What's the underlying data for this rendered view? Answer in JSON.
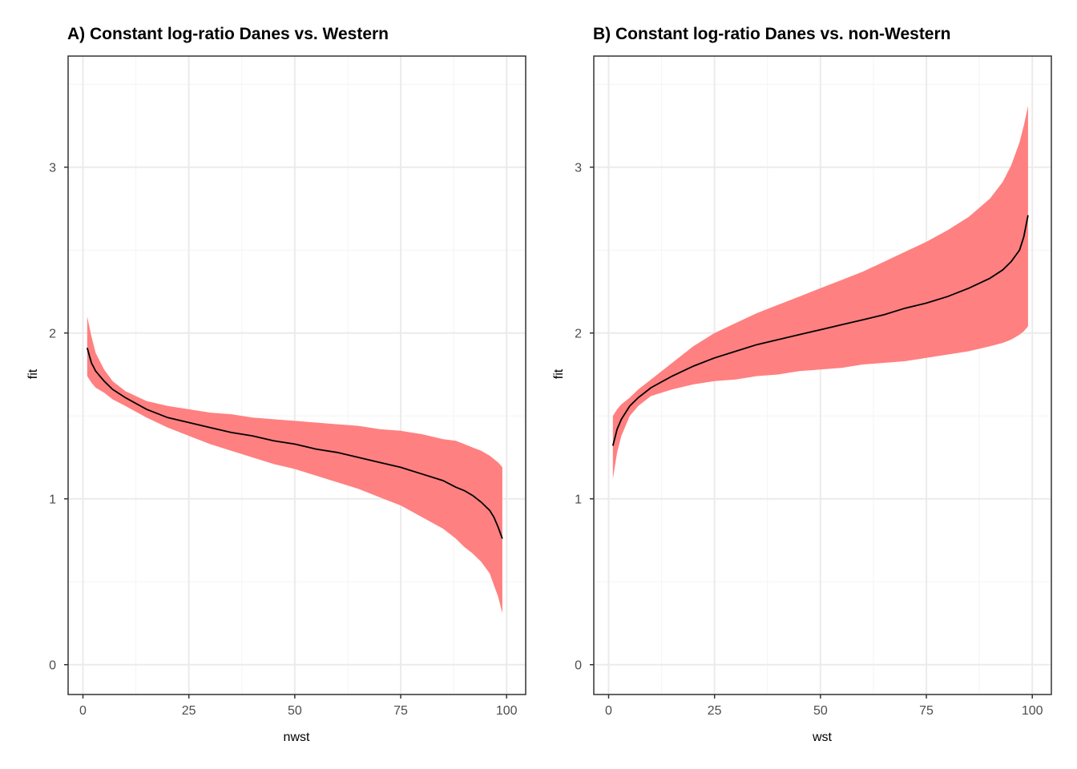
{
  "colors": {
    "ribbon": "#ff8080",
    "line": "#000000",
    "grid_major": "#ebebeb",
    "grid_minor": "#f4f4f4",
    "panel_border": "#333333",
    "tick_text": "#4d4d4d"
  },
  "chart_data": [
    {
      "type": "area",
      "title": "A) Constant log-ratio Danes vs. Western",
      "xlabel": "nwst",
      "ylabel": "fit",
      "xlim": [
        -3.5,
        104.5
      ],
      "ylim": [
        -0.18,
        3.67
      ],
      "x_ticks": [
        0,
        25,
        50,
        75,
        100
      ],
      "y_ticks": [
        0,
        1,
        2,
        3
      ],
      "x_tick_labels": [
        "0",
        "25",
        "50",
        "75",
        "100"
      ],
      "y_tick_labels": [
        "0",
        "1",
        "2",
        "3"
      ],
      "grid": true,
      "legend": "none",
      "series": [
        {
          "x": [
            1,
            2,
            3,
            5,
            7,
            10,
            15,
            20,
            25,
            30,
            35,
            40,
            45,
            50,
            55,
            60,
            65,
            70,
            75,
            80,
            85,
            88,
            90,
            92,
            94,
            96,
            97,
            98,
            99
          ],
          "fit": [
            1.91,
            1.82,
            1.77,
            1.71,
            1.66,
            1.61,
            1.54,
            1.49,
            1.46,
            1.43,
            1.4,
            1.38,
            1.35,
            1.33,
            1.3,
            1.28,
            1.25,
            1.22,
            1.19,
            1.15,
            1.11,
            1.07,
            1.05,
            1.02,
            0.98,
            0.93,
            0.89,
            0.83,
            0.76
          ],
          "lower": [
            1.74,
            1.7,
            1.67,
            1.64,
            1.6,
            1.56,
            1.49,
            1.43,
            1.38,
            1.33,
            1.29,
            1.25,
            1.21,
            1.18,
            1.14,
            1.1,
            1.06,
            1.01,
            0.96,
            0.89,
            0.82,
            0.76,
            0.71,
            0.67,
            0.62,
            0.55,
            0.48,
            0.41,
            0.31
          ],
          "upper": [
            2.1,
            1.98,
            1.88,
            1.78,
            1.71,
            1.65,
            1.59,
            1.56,
            1.54,
            1.52,
            1.51,
            1.49,
            1.48,
            1.47,
            1.46,
            1.45,
            1.44,
            1.42,
            1.41,
            1.39,
            1.36,
            1.35,
            1.33,
            1.31,
            1.29,
            1.26,
            1.24,
            1.22,
            1.19
          ]
        }
      ]
    },
    {
      "type": "area",
      "title": "B) Constant log-ratio Danes vs. non-Western",
      "xlabel": "wst",
      "ylabel": "fit",
      "xlim": [
        -3.5,
        104.5
      ],
      "ylim": [
        -0.18,
        3.67
      ],
      "x_ticks": [
        0,
        25,
        50,
        75,
        100
      ],
      "y_ticks": [
        0,
        1,
        2,
        3
      ],
      "x_tick_labels": [
        "0",
        "25",
        "50",
        "75",
        "100"
      ],
      "y_tick_labels": [
        "0",
        "1",
        "2",
        "3"
      ],
      "grid": true,
      "legend": "none",
      "series": [
        {
          "x": [
            1,
            2,
            3,
            5,
            7,
            10,
            15,
            20,
            25,
            30,
            35,
            40,
            45,
            50,
            55,
            60,
            65,
            70,
            75,
            80,
            85,
            90,
            93,
            95,
            97,
            98,
            99
          ],
          "fit": [
            1.32,
            1.42,
            1.48,
            1.56,
            1.61,
            1.67,
            1.74,
            1.8,
            1.85,
            1.89,
            1.93,
            1.96,
            1.99,
            2.02,
            2.05,
            2.08,
            2.11,
            2.15,
            2.18,
            2.22,
            2.27,
            2.33,
            2.38,
            2.43,
            2.5,
            2.58,
            2.71
          ],
          "lower": [
            1.12,
            1.28,
            1.38,
            1.5,
            1.56,
            1.62,
            1.66,
            1.69,
            1.71,
            1.72,
            1.74,
            1.75,
            1.77,
            1.78,
            1.79,
            1.81,
            1.82,
            1.83,
            1.85,
            1.87,
            1.89,
            1.92,
            1.94,
            1.96,
            1.99,
            2.01,
            2.04
          ],
          "upper": [
            1.5,
            1.54,
            1.57,
            1.61,
            1.66,
            1.72,
            1.82,
            1.92,
            2.0,
            2.06,
            2.12,
            2.17,
            2.22,
            2.27,
            2.32,
            2.37,
            2.43,
            2.49,
            2.55,
            2.62,
            2.7,
            2.81,
            2.91,
            3.01,
            3.15,
            3.25,
            3.37
          ]
        }
      ]
    }
  ]
}
